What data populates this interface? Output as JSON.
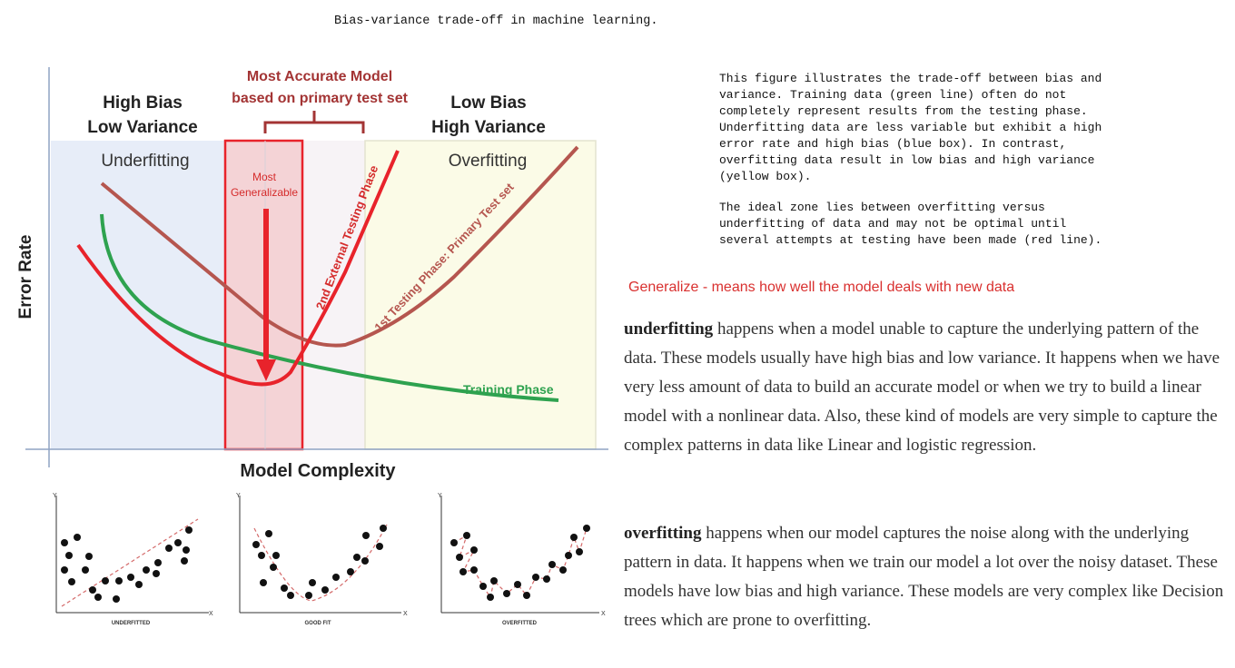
{
  "caption": "Bias-variance trade-off in machine learning.",
  "figure": {
    "top_label": [
      "Most Accurate Model",
      "based on primary test set"
    ],
    "left_label": [
      "High Bias",
      "Low Variance"
    ],
    "right_label": [
      "Low Bias",
      "High Variance"
    ],
    "underfitting_label": "Underfitting",
    "overfitting_label": "Overfitting",
    "most_generalizable": [
      "Most",
      "Generalizable"
    ],
    "y_axis_label": "Error Rate",
    "x_axis_label": "Model Complexity",
    "curve_labels": {
      "training": "Training Phase",
      "external": "2nd External Testing Phase",
      "primary": "1st Testing Phase: Primary Test set"
    },
    "colors": {
      "training": "#2ea24f",
      "external": "#e8232b",
      "primary": "#b5564f",
      "underfit_zone": "#e7edf8",
      "overfit_zone": "#fbfbe7",
      "accurate_box": "#f3c0c3",
      "label_red": "#a33434"
    }
  },
  "subplots": [
    {
      "label": "UNDERFITTED",
      "axis_x": "X",
      "axis_y": "Y"
    },
    {
      "label": "GOOD FIT",
      "axis_x": "X",
      "axis_y": "Y"
    },
    {
      "label": "OVERFITTED",
      "axis_x": "X",
      "axis_y": "Y"
    }
  ],
  "description": {
    "para1": "This figure illustrates the trade-off between bias and variance. Training data (green line) often do not completely represent results from the testing phase. Underfitting data are less variable but exhibit a high error rate and high bias (blue box). In contrast, overfitting data result in low bias and high variance (yellow box).",
    "para2": "The ideal zone lies between overfitting versus underfitting of data and may not be optimal until several attempts at testing have been made (red line)."
  },
  "generalize_note": "Generalize - means how well the model deals with new data",
  "underfitting": {
    "term": "underfitting",
    "text": " happens when a model unable to capture the underlying pattern of the data. These models usually have high bias and low variance. It happens when we have very less amount of data to build an accurate model or when we try to build a linear model with a nonlinear data. Also, these kind of models are very simple to capture the complex patterns in data like Linear and logistic regression."
  },
  "overfitting": {
    "term": "overfitting",
    "text": " happens when our model captures the noise along with the underlying pattern in data. It happens when we train our model a lot over the noisy dataset. These models have low bias and high variance. These models are very complex like Decision trees which are prone to overfitting."
  }
}
